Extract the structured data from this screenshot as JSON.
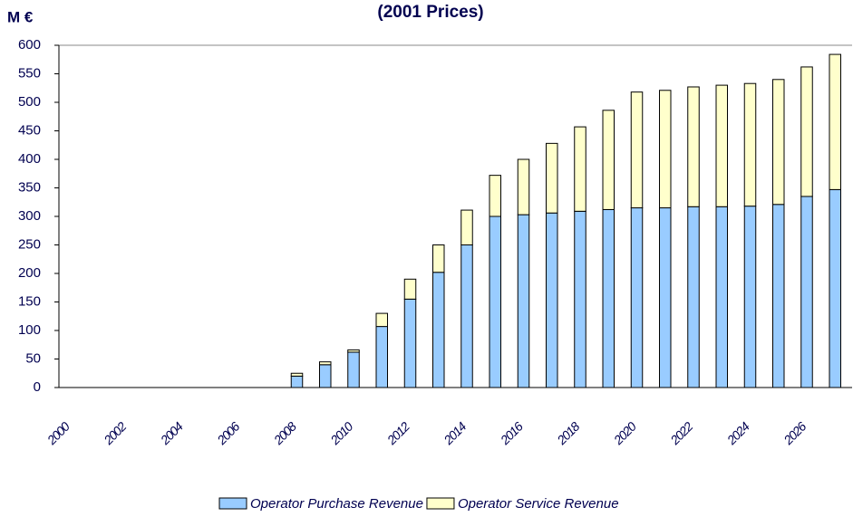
{
  "chart_data": {
    "type": "stacked_bar",
    "title": "(2001 Prices)",
    "y_label": "M €",
    "categories": [
      "2000",
      null,
      "2002",
      null,
      "2004",
      null,
      "2006",
      null,
      "2008",
      null,
      "2010",
      null,
      "2012",
      null,
      "2014",
      null,
      "2016",
      null,
      "2018",
      null,
      "2020",
      null,
      "2022",
      null,
      "2024",
      null,
      "2026",
      null
    ],
    "series": [
      {
        "name": "Operator Purchase Revenue",
        "color": "#99ccff",
        "values": [
          0,
          0,
          0,
          0,
          0,
          0,
          0,
          0,
          20,
          40,
          62,
          107,
          155,
          202,
          250,
          300,
          303,
          306,
          309,
          312,
          315,
          315,
          317,
          317,
          318,
          321,
          335,
          347
        ]
      },
      {
        "name": "Operator Service Revenue",
        "color": "#ffffcc",
        "values": [
          0,
          0,
          0,
          0,
          0,
          0,
          0,
          0,
          5,
          5,
          4,
          23,
          35,
          48,
          61,
          72,
          97,
          122,
          148,
          174,
          203,
          206,
          210,
          213,
          215,
          219,
          227,
          237
        ]
      }
    ],
    "ylim": [
      0,
      600
    ],
    "yticks": [
      0,
      50,
      100,
      150,
      200,
      250,
      300,
      350,
      400,
      450,
      500,
      550,
      600
    ],
    "grid": false,
    "legend": "bottom"
  }
}
